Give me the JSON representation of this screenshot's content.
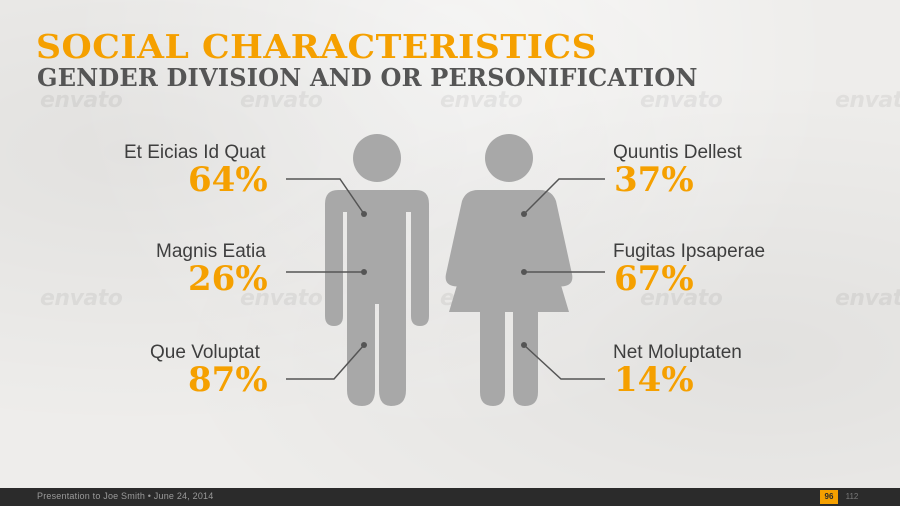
{
  "slide": {
    "title": "SOCIAL CHARACTERISTICS",
    "subtitle": "GENDER DIVISION AND OR PERSONIFICATION"
  },
  "watermark": {
    "text": "envato"
  },
  "male": {
    "icon": "male-figure-icon",
    "items": [
      {
        "label": "Et Eicias Id Quat",
        "value": "64%"
      },
      {
        "label": "Magnis Eatia",
        "value": "26%"
      },
      {
        "label": "Que Voluptat",
        "value": "87%"
      }
    ]
  },
  "female": {
    "icon": "female-figure-icon",
    "items": [
      {
        "label": "Quuntis Dellest",
        "value": "37%"
      },
      {
        "label": "Fugitas Ipsaperae",
        "value": "67%"
      },
      {
        "label": "Net Moluptaten",
        "value": "14%"
      }
    ]
  },
  "colors": {
    "accent": "#f5a000",
    "figure": "#a8a8a8",
    "text": "#3e3e3e",
    "footer": "#2b2b2b"
  },
  "footer": {
    "text": "Presentation to Joe Smith • June 24, 2014",
    "page": "96",
    "total": "112"
  }
}
